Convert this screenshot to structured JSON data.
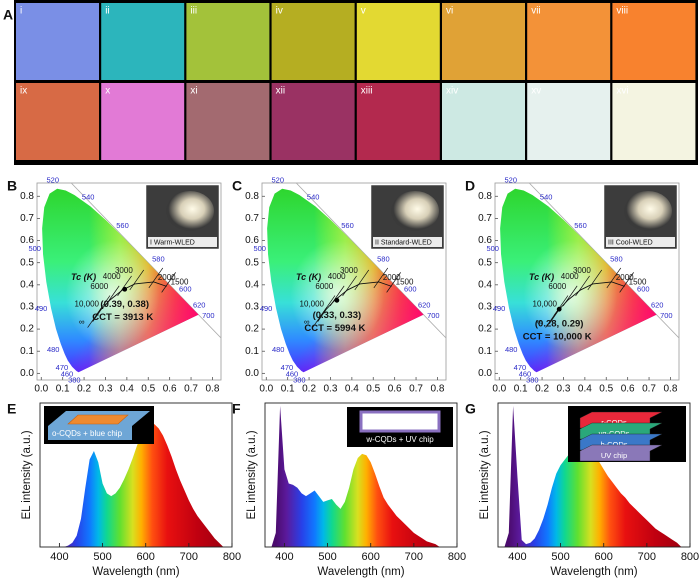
{
  "panel_a": {
    "label": "A",
    "swatches": [
      {
        "label": "i",
        "color": "#7a8fe6"
      },
      {
        "label": "ii",
        "color": "#2cb5bc"
      },
      {
        "label": "iii",
        "color": "#a3c23a"
      },
      {
        "label": "iv",
        "color": "#b5ae22"
      },
      {
        "label": "v",
        "color": "#e3d932"
      },
      {
        "label": "vi",
        "color": "#e0a236"
      },
      {
        "label": "vii",
        "color": "#f39238"
      },
      {
        "label": "viii",
        "color": "#f8822e"
      },
      {
        "label": "ix",
        "color": "#d76a45"
      },
      {
        "label": "x",
        "color": "#e27ad6"
      },
      {
        "label": "xi",
        "color": "#a36a70"
      },
      {
        "label": "xii",
        "color": "#9a3263"
      },
      {
        "label": "xiii",
        "color": "#b3294e"
      },
      {
        "label": "xiv",
        "color": "#cde9e3"
      },
      {
        "label": "xv",
        "color": "#e6f1ee"
      },
      {
        "label": "xvi",
        "color": "#f4f4e1"
      }
    ]
  },
  "chart_data": [
    {
      "type": "cie",
      "label": "B",
      "xlim": [
        -0.02,
        0.84
      ],
      "ylim": [
        -0.03,
        0.86
      ],
      "xticks": [
        {
          "value": 0,
          "label": "0.0"
        },
        0.1,
        0.2,
        0.3,
        0.4,
        0.5,
        0.6,
        0.7,
        0.8
      ],
      "yticks": [
        {
          "value": 0,
          "label": "0.0"
        },
        0.1,
        0.2,
        0.3,
        0.4,
        0.5,
        0.6,
        0.7,
        0.8
      ],
      "locus": {
        "nm": [
          380,
          440,
          460,
          470,
          475,
          480,
          485,
          490,
          495,
          500,
          505,
          510,
          515,
          520,
          525,
          530,
          540,
          550,
          560,
          570,
          580,
          590,
          600,
          610,
          620,
          640,
          700
        ],
        "x": [
          0.1741,
          0.1644,
          0.144,
          0.1241,
          0.1096,
          0.0913,
          0.0687,
          0.0454,
          0.0235,
          0.0082,
          0.0039,
          0.0139,
          0.0389,
          0.0743,
          0.1142,
          0.1547,
          0.2296,
          0.3016,
          0.3731,
          0.4441,
          0.5125,
          0.5752,
          0.627,
          0.6658,
          0.6915,
          0.719,
          0.7347
        ],
        "y": [
          0.005,
          0.0109,
          0.0297,
          0.0578,
          0.0868,
          0.1327,
          0.2007,
          0.295,
          0.4127,
          0.5384,
          0.6548,
          0.7502,
          0.812,
          0.8338,
          0.8262,
          0.8059,
          0.7543,
          0.6923,
          0.6245,
          0.5547,
          0.4866,
          0.4242,
          0.3725,
          0.334,
          0.3083,
          0.2809,
          0.2653
        ]
      },
      "locus_labels": [
        380,
        460,
        470,
        480,
        490,
        500,
        520,
        540,
        560,
        580,
        600,
        620,
        700
      ],
      "planck": {
        "title": "Tc (K)",
        "points": [
          {
            "label": "∞",
            "x": 0.24,
            "y": 0.234
          },
          {
            "label": "10,000",
            "x": 0.279,
            "y": 0.288
          },
          {
            "label": "6000",
            "x": 0.322,
            "y": 0.332
          },
          {
            "label": "4000",
            "x": 0.38,
            "y": 0.377
          },
          {
            "label": "3000",
            "x": 0.437,
            "y": 0.404
          },
          {
            "label": "2000",
            "x": 0.526,
            "y": 0.413
          },
          {
            "label": "1500",
            "x": 0.586,
            "y": 0.393
          }
        ]
      },
      "point": {
        "x": 0.39,
        "y": 0.38,
        "label": "(0.39, 0.38)"
      },
      "cct": "CCT = 3913 K",
      "inset_caption": "I Warm-WLED"
    },
    {
      "type": "cie",
      "label": "C",
      "xlim": [
        -0.02,
        0.84
      ],
      "ylim": [
        -0.03,
        0.86
      ],
      "xticks": [
        {
          "value": 0,
          "label": "0.0"
        },
        0.1,
        0.2,
        0.3,
        0.4,
        0.5,
        0.6,
        0.7,
        0.8
      ],
      "yticks": [
        {
          "value": 0,
          "label": "0.0"
        },
        0.1,
        0.2,
        0.3,
        0.4,
        0.5,
        0.6,
        0.7,
        0.8
      ],
      "locus": {
        "nm": [
          380,
          440,
          460,
          470,
          475,
          480,
          485,
          490,
          495,
          500,
          505,
          510,
          515,
          520,
          525,
          530,
          540,
          550,
          560,
          570,
          580,
          590,
          600,
          610,
          620,
          640,
          700
        ],
        "x": [
          0.1741,
          0.1644,
          0.144,
          0.1241,
          0.1096,
          0.0913,
          0.0687,
          0.0454,
          0.0235,
          0.0082,
          0.0039,
          0.0139,
          0.0389,
          0.0743,
          0.1142,
          0.1547,
          0.2296,
          0.3016,
          0.3731,
          0.4441,
          0.5125,
          0.5752,
          0.627,
          0.6658,
          0.6915,
          0.719,
          0.7347
        ],
        "y": [
          0.005,
          0.0109,
          0.0297,
          0.0578,
          0.0868,
          0.1327,
          0.2007,
          0.295,
          0.4127,
          0.5384,
          0.6548,
          0.7502,
          0.812,
          0.8338,
          0.8262,
          0.8059,
          0.7543,
          0.6923,
          0.6245,
          0.5547,
          0.4866,
          0.4242,
          0.3725,
          0.334,
          0.3083,
          0.2809,
          0.2653
        ]
      },
      "locus_labels": [
        380,
        460,
        470,
        480,
        490,
        500,
        520,
        540,
        560,
        580,
        600,
        620,
        700
      ],
      "planck": {
        "title": "Tc (K)",
        "points": [
          {
            "label": "∞",
            "x": 0.24,
            "y": 0.234
          },
          {
            "label": "10,000",
            "x": 0.279,
            "y": 0.288
          },
          {
            "label": "6000",
            "x": 0.322,
            "y": 0.332
          },
          {
            "label": "4000",
            "x": 0.38,
            "y": 0.377
          },
          {
            "label": "3000",
            "x": 0.437,
            "y": 0.404
          },
          {
            "label": "2000",
            "x": 0.526,
            "y": 0.413
          },
          {
            "label": "1500",
            "x": 0.586,
            "y": 0.393
          }
        ]
      },
      "point": {
        "x": 0.33,
        "y": 0.33,
        "label": "(0.33, 0.33)"
      },
      "cct": "CCT = 5994 K",
      "inset_caption": "II Standard-WLED"
    },
    {
      "type": "cie",
      "label": "D",
      "xlim": [
        -0.02,
        0.84
      ],
      "ylim": [
        -0.03,
        0.86
      ],
      "xticks": [
        {
          "value": 0,
          "label": "0.0"
        },
        0.1,
        0.2,
        0.3,
        0.4,
        0.5,
        0.6,
        0.7,
        0.8
      ],
      "yticks": [
        {
          "value": 0,
          "label": "0.0"
        },
        0.1,
        0.2,
        0.3,
        0.4,
        0.5,
        0.6,
        0.7,
        0.8
      ],
      "locus": {
        "nm": [
          380,
          440,
          460,
          470,
          475,
          480,
          485,
          490,
          495,
          500,
          505,
          510,
          515,
          520,
          525,
          530,
          540,
          550,
          560,
          570,
          580,
          590,
          600,
          610,
          620,
          640,
          700
        ],
        "x": [
          0.1741,
          0.1644,
          0.144,
          0.1241,
          0.1096,
          0.0913,
          0.0687,
          0.0454,
          0.0235,
          0.0082,
          0.0039,
          0.0139,
          0.0389,
          0.0743,
          0.1142,
          0.1547,
          0.2296,
          0.3016,
          0.3731,
          0.4441,
          0.5125,
          0.5752,
          0.627,
          0.6658,
          0.6915,
          0.719,
          0.7347
        ],
        "y": [
          0.005,
          0.0109,
          0.0297,
          0.0578,
          0.0868,
          0.1327,
          0.2007,
          0.295,
          0.4127,
          0.5384,
          0.6548,
          0.7502,
          0.812,
          0.8338,
          0.8262,
          0.8059,
          0.7543,
          0.6923,
          0.6245,
          0.5547,
          0.4866,
          0.4242,
          0.3725,
          0.334,
          0.3083,
          0.2809,
          0.2653
        ]
      },
      "locus_labels": [
        380,
        460,
        470,
        480,
        490,
        500,
        520,
        540,
        560,
        580,
        600,
        620,
        700
      ],
      "planck": {
        "title": "Tc (K)",
        "points": [
          {
            "label": "∞",
            "x": 0.24,
            "y": 0.234
          },
          {
            "label": "10,000",
            "x": 0.279,
            "y": 0.288
          },
          {
            "label": "6000",
            "x": 0.322,
            "y": 0.332
          },
          {
            "label": "4000",
            "x": 0.38,
            "y": 0.377
          },
          {
            "label": "3000",
            "x": 0.437,
            "y": 0.404
          },
          {
            "label": "2000",
            "x": 0.526,
            "y": 0.413
          },
          {
            "label": "1500",
            "x": 0.586,
            "y": 0.393
          }
        ]
      },
      "point": {
        "x": 0.28,
        "y": 0.29,
        "label": "(0.28, 0.29)"
      },
      "cct": "CCT = 10,000 K",
      "inset_caption": "III Cool-WLED"
    },
    {
      "type": "spectrum",
      "label": "E",
      "xlim": [
        355,
        800
      ],
      "ylim": [
        0,
        1.02
      ],
      "xticks": [
        400,
        500,
        600,
        700,
        800
      ],
      "xlabel": "Wavelength (nm)",
      "ylabel": "EL intensity (a.u.)",
      "inset_labels": [
        "o-CQDs + blue chip"
      ],
      "x": [
        410,
        420,
        430,
        440,
        450,
        460,
        470,
        480,
        490,
        500,
        510,
        520,
        530,
        540,
        550,
        560,
        570,
        580,
        590,
        600,
        610,
        620,
        630,
        640,
        650,
        660,
        670,
        680,
        690,
        700,
        710,
        720,
        730,
        740,
        750,
        760,
        770,
        780
      ],
      "values": [
        0,
        0.01,
        0.03,
        0.08,
        0.2,
        0.42,
        0.62,
        0.68,
        0.6,
        0.45,
        0.38,
        0.36,
        0.38,
        0.42,
        0.48,
        0.55,
        0.63,
        0.72,
        0.79,
        0.84,
        0.87,
        0.87,
        0.84,
        0.79,
        0.72,
        0.64,
        0.55,
        0.47,
        0.4,
        0.33,
        0.27,
        0.22,
        0.18,
        0.14,
        0.1,
        0.06,
        0.03,
        0
      ]
    },
    {
      "type": "spectrum",
      "label": "F",
      "xlim": [
        355,
        800
      ],
      "ylim": [
        0,
        1.02
      ],
      "xticks": [
        400,
        500,
        600,
        700,
        800
      ],
      "xlabel": "Wavelength (nm)",
      "ylabel": "EL intensity (a.u.)",
      "inset_labels": [
        "w-CQDs + UV chip"
      ],
      "x": [
        370,
        380,
        390,
        400,
        410,
        420,
        430,
        440,
        450,
        460,
        470,
        480,
        490,
        500,
        510,
        520,
        530,
        540,
        550,
        560,
        570,
        580,
        590,
        600,
        610,
        620,
        630,
        640,
        650,
        660,
        670,
        680,
        690,
        700,
        710,
        720,
        730,
        740,
        750,
        760
      ],
      "values": [
        0,
        0.1,
        1.0,
        0.55,
        0.45,
        0.44,
        0.42,
        0.38,
        0.36,
        0.38,
        0.4,
        0.36,
        0.32,
        0.33,
        0.34,
        0.3,
        0.27,
        0.32,
        0.42,
        0.55,
        0.63,
        0.66,
        0.65,
        0.6,
        0.52,
        0.43,
        0.35,
        0.3,
        0.26,
        0.22,
        0.19,
        0.16,
        0.13,
        0.1,
        0.08,
        0.06,
        0.04,
        0.03,
        0.02,
        0
      ]
    },
    {
      "type": "spectrum",
      "label": "G",
      "xlim": [
        355,
        800
      ],
      "ylim": [
        0,
        1.02
      ],
      "xticks": [
        400,
        500,
        600,
        700,
        800
      ],
      "xlabel": "Wavelength (nm)",
      "ylabel": "EL intensity (a.u.)",
      "inset_labels": [
        "r-CQDs",
        "yg-CQDs",
        "b-CQDs",
        "UV chip"
      ],
      "x": [
        370,
        380,
        390,
        400,
        410,
        420,
        430,
        440,
        450,
        460,
        470,
        480,
        490,
        500,
        510,
        520,
        530,
        540,
        550,
        560,
        570,
        580,
        590,
        600,
        610,
        620,
        630,
        640,
        650,
        660,
        670,
        680,
        690,
        700,
        710,
        720,
        730,
        740,
        750,
        760,
        770,
        780
      ],
      "values": [
        0,
        0.1,
        1.0,
        0.5,
        0.05,
        0.02,
        0.03,
        0.06,
        0.12,
        0.2,
        0.3,
        0.42,
        0.52,
        0.58,
        0.62,
        0.66,
        0.7,
        0.72,
        0.73,
        0.72,
        0.69,
        0.65,
        0.6,
        0.55,
        0.5,
        0.46,
        0.42,
        0.38,
        0.35,
        0.31,
        0.28,
        0.25,
        0.22,
        0.19,
        0.16,
        0.13,
        0.11,
        0.09,
        0.07,
        0.05,
        0.03,
        0
      ]
    }
  ]
}
